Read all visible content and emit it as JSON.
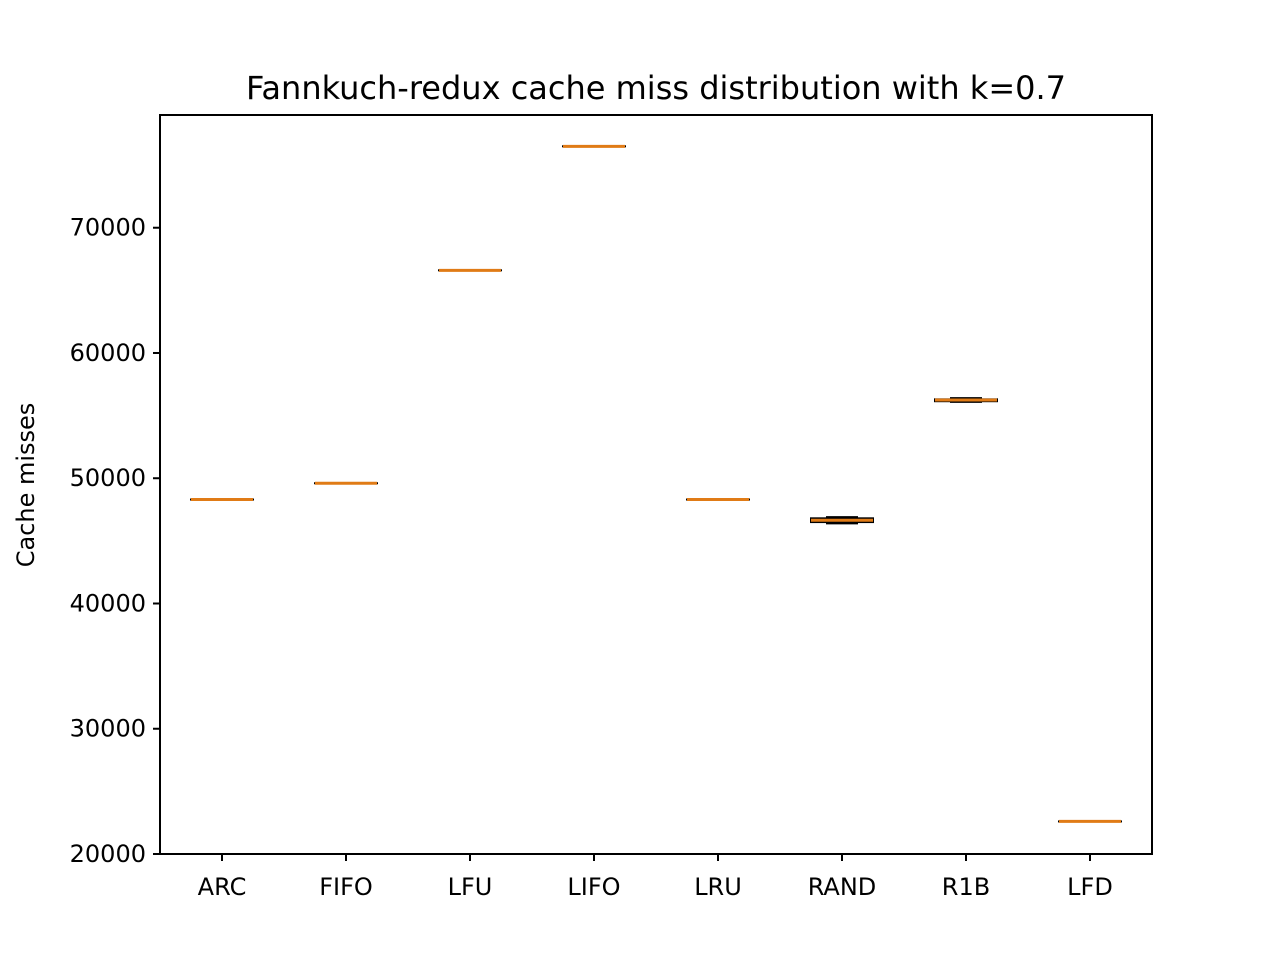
{
  "chart_data": {
    "type": "box",
    "title": "Fannkuch-redux cache miss distribution with k=0.7",
    "xlabel": "",
    "ylabel": "Cache misses",
    "ylim": [
      20000,
      79000
    ],
    "yticks": [
      20000,
      30000,
      40000,
      50000,
      60000,
      70000
    ],
    "grid": false,
    "categories": [
      "ARC",
      "FIFO",
      "LFU",
      "LIFO",
      "LRU",
      "RAND",
      "R1B",
      "LFD"
    ],
    "boxes": [
      {
        "category": "ARC",
        "whisker_low": 48300,
        "q1": 48300,
        "median": 48300,
        "q3": 48300,
        "whisker_high": 48300
      },
      {
        "category": "FIFO",
        "whisker_low": 49600,
        "q1": 49600,
        "median": 49600,
        "q3": 49600,
        "whisker_high": 49600
      },
      {
        "category": "LFU",
        "whisker_low": 66600,
        "q1": 66600,
        "median": 66600,
        "q3": 66600,
        "whisker_high": 66600
      },
      {
        "category": "LIFO",
        "whisker_low": 76500,
        "q1": 76500,
        "median": 76500,
        "q3": 76500,
        "whisker_high": 76500
      },
      {
        "category": "LRU",
        "whisker_low": 48300,
        "q1": 48300,
        "median": 48300,
        "q3": 48300,
        "whisker_high": 48300
      },
      {
        "category": "RAND",
        "whisker_low": 46400,
        "q1": 46500,
        "median": 46650,
        "q3": 46800,
        "whisker_high": 46900
      },
      {
        "category": "R1B",
        "whisker_low": 56100,
        "q1": 56150,
        "median": 56250,
        "q3": 56300,
        "whisker_high": 56400
      },
      {
        "category": "LFD",
        "whisker_low": 22600,
        "q1": 22600,
        "median": 22600,
        "q3": 22600,
        "whisker_high": 22600
      }
    ],
    "colors": {
      "median": "#e07b16",
      "box": "#000000",
      "axes": "#000000",
      "background": "#ffffff"
    }
  }
}
